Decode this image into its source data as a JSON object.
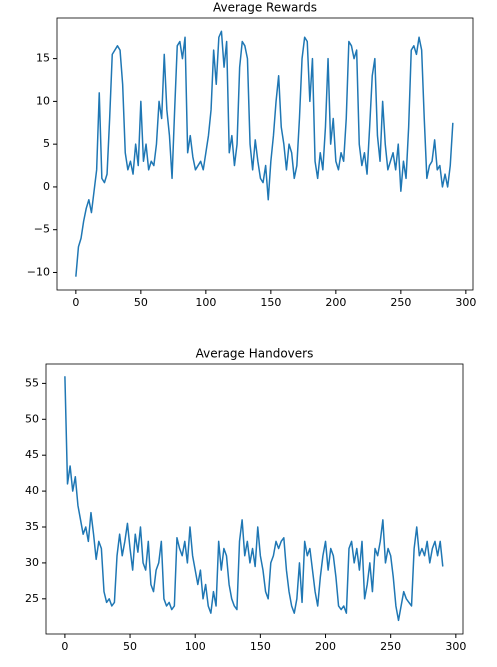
{
  "chart_data": [
    {
      "type": "line",
      "title": "Average Rewards",
      "x": [
        0,
        2,
        4,
        6,
        8,
        10,
        12,
        14,
        16,
        18,
        20,
        22,
        24,
        26,
        28,
        30,
        32,
        34,
        36,
        38,
        40,
        42,
        44,
        46,
        48,
        50,
        52,
        54,
        56,
        58,
        60,
        62,
        64,
        66,
        68,
        70,
        72,
        74,
        76,
        78,
        80,
        82,
        84,
        86,
        88,
        90,
        92,
        94,
        96,
        98,
        100,
        102,
        104,
        106,
        108,
        110,
        112,
        114,
        116,
        118,
        120,
        122,
        124,
        126,
        128,
        130,
        132,
        134,
        136,
        138,
        140,
        142,
        144,
        146,
        148,
        150,
        152,
        154,
        156,
        158,
        160,
        162,
        164,
        166,
        168,
        170,
        172,
        174,
        176,
        178,
        180,
        182,
        184,
        186,
        188,
        190,
        192,
        194,
        196,
        198,
        200,
        202,
        204,
        206,
        208,
        210,
        212,
        214,
        216,
        218,
        220,
        222,
        224,
        226,
        228,
        230,
        232,
        234,
        236,
        238,
        240,
        242,
        244,
        246,
        248,
        250,
        252,
        254,
        256,
        258,
        260,
        262,
        264,
        266,
        268,
        270,
        272,
        274,
        276,
        278,
        280,
        282,
        284,
        286,
        288,
        290
      ],
      "series": [
        {
          "color": "#1f77b4",
          "values": [
            -10.5,
            -7,
            -6,
            -4,
            -2.5,
            -1.5,
            -3,
            -0.5,
            2,
            11,
            1,
            0.5,
            1.5,
            8,
            15.5,
            16,
            16.5,
            16,
            12,
            4,
            2,
            3,
            1.5,
            5,
            2.5,
            10,
            3,
            5,
            2,
            3,
            2.5,
            5,
            10,
            8,
            15.5,
            9,
            6,
            1,
            9,
            16.5,
            17,
            15,
            17.5,
            4,
            6,
            3.5,
            2,
            2.5,
            3,
            2,
            4,
            6,
            9,
            16,
            12,
            17.5,
            18.2,
            14,
            17,
            4,
            6,
            2.5,
            5,
            14,
            17,
            16.5,
            15,
            5,
            2,
            5.5,
            3,
            1,
            0.5,
            2.5,
            -1.5,
            3,
            6,
            10,
            13,
            7,
            5,
            2,
            5,
            4,
            1,
            2.5,
            8,
            15,
            17.5,
            17,
            10,
            15,
            3,
            1,
            4,
            2,
            7,
            15,
            5,
            8,
            3,
            2,
            4,
            3,
            8,
            17,
            16.5,
            15,
            16,
            5,
            2.5,
            4,
            1.5,
            7,
            13,
            15,
            6,
            3,
            10,
            5,
            2,
            3,
            4,
            2,
            5,
            -0.5,
            3,
            1,
            7,
            16,
            16.5,
            15.5,
            17.5,
            16,
            8,
            1,
            2.5,
            3,
            5.5,
            2,
            2.5,
            0,
            1.5,
            0,
            2.5,
            7.5
          ]
        }
      ],
      "xlim": [
        -14.5,
        305.5
      ],
      "ylim": [
        -12.05,
        19.75
      ],
      "xticks": [
        0,
        50,
        100,
        150,
        200,
        250,
        300
      ],
      "yticks": [
        {
          "value": -10,
          "label": "−10"
        },
        {
          "value": -5,
          "label": "−5"
        },
        0,
        5,
        10,
        15
      ]
    },
    {
      "type": "line",
      "title": "Average Handovers",
      "x": [
        0,
        2,
        4,
        6,
        8,
        10,
        12,
        14,
        16,
        18,
        20,
        22,
        24,
        26,
        28,
        30,
        32,
        34,
        36,
        38,
        40,
        42,
        44,
        46,
        48,
        50,
        52,
        54,
        56,
        58,
        60,
        62,
        64,
        66,
        68,
        70,
        72,
        74,
        76,
        78,
        80,
        82,
        84,
        86,
        88,
        90,
        92,
        94,
        96,
        98,
        100,
        102,
        104,
        106,
        108,
        110,
        112,
        114,
        116,
        118,
        120,
        122,
        124,
        126,
        128,
        130,
        132,
        134,
        136,
        138,
        140,
        142,
        144,
        146,
        148,
        150,
        152,
        154,
        156,
        158,
        160,
        162,
        164,
        166,
        168,
        170,
        172,
        174,
        176,
        178,
        180,
        182,
        184,
        186,
        188,
        190,
        192,
        194,
        196,
        198,
        200,
        202,
        204,
        206,
        208,
        210,
        212,
        214,
        216,
        218,
        220,
        222,
        224,
        226,
        228,
        230,
        232,
        234,
        236,
        238,
        240,
        242,
        244,
        246,
        248,
        250,
        252,
        254,
        256,
        258,
        260,
        262,
        264,
        266,
        268,
        270,
        272,
        274,
        276,
        278,
        280,
        282,
        284,
        286,
        288,
        290
      ],
      "series": [
        {
          "color": "#1f77b4",
          "values": [
            56,
            41,
            43.5,
            40,
            42,
            38,
            36,
            34,
            35,
            33,
            37,
            34,
            30.5,
            33,
            32,
            26,
            24.5,
            25,
            24,
            24.5,
            31,
            34,
            31,
            33,
            35.5,
            32,
            29,
            34,
            31.5,
            35,
            30,
            29,
            33,
            27,
            26,
            29,
            30,
            33,
            25,
            24,
            24.5,
            23.5,
            24,
            33.5,
            32,
            31,
            33,
            30,
            35,
            31,
            29,
            27,
            29,
            25,
            27,
            24,
            23,
            26,
            24,
            33,
            29,
            32,
            31,
            27,
            25,
            24,
            23.5,
            33,
            36,
            31,
            33,
            30,
            32,
            29.5,
            35,
            31,
            29,
            26,
            25,
            30,
            31,
            33,
            32,
            33,
            33.5,
            29,
            26,
            24,
            23,
            25,
            30,
            24.5,
            33,
            31,
            32,
            29,
            26,
            24,
            28,
            31,
            33,
            29,
            32,
            31,
            28,
            24,
            23.5,
            24,
            23,
            32,
            33,
            30,
            32,
            29,
            33,
            25,
            27,
            30,
            26,
            32,
            31,
            33,
            36,
            30,
            32,
            31,
            28,
            24,
            22,
            24,
            26,
            25,
            24.5,
            24,
            32,
            35,
            31,
            32,
            31,
            33,
            30,
            32,
            33,
            31,
            33,
            29.5
          ]
        }
      ],
      "xlim": [
        -14.5,
        305.5
      ],
      "ylim": [
        20.1,
        57.7
      ],
      "xticks": [
        0,
        50,
        100,
        150,
        200,
        250,
        300
      ],
      "yticks": [
        25,
        30,
        35,
        40,
        45,
        50,
        55
      ]
    }
  ]
}
